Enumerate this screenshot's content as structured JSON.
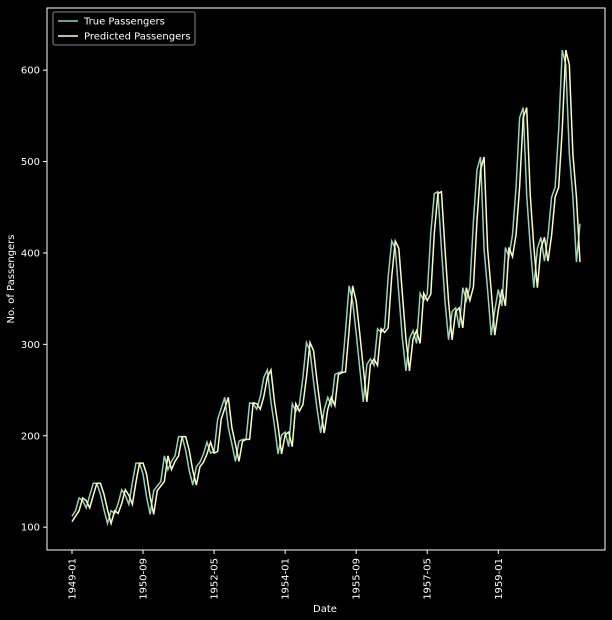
{
  "chart_data": {
    "type": "line",
    "xlabel": "Date",
    "ylabel": "No. of Passengers",
    "x": [
      "1949-01",
      "1949-02",
      "1949-03",
      "1949-04",
      "1949-05",
      "1949-06",
      "1949-07",
      "1949-08",
      "1949-09",
      "1949-10",
      "1949-11",
      "1949-12",
      "1950-01",
      "1950-02",
      "1950-03",
      "1950-04",
      "1950-05",
      "1950-06",
      "1950-07",
      "1950-08",
      "1950-09",
      "1950-10",
      "1950-11",
      "1950-12",
      "1951-01",
      "1951-02",
      "1951-03",
      "1951-04",
      "1951-05",
      "1951-06",
      "1951-07",
      "1951-08",
      "1951-09",
      "1951-10",
      "1951-11",
      "1951-12",
      "1952-01",
      "1952-02",
      "1952-03",
      "1952-04",
      "1952-05",
      "1952-06",
      "1952-07",
      "1952-08",
      "1952-09",
      "1952-10",
      "1952-11",
      "1952-12",
      "1953-01",
      "1953-02",
      "1953-03",
      "1953-04",
      "1953-05",
      "1953-06",
      "1953-07",
      "1953-08",
      "1953-09",
      "1953-10",
      "1953-11",
      "1953-12",
      "1954-01",
      "1954-02",
      "1954-03",
      "1954-04",
      "1954-05",
      "1954-06",
      "1954-07",
      "1954-08",
      "1954-09",
      "1954-10",
      "1954-11",
      "1954-12",
      "1955-01",
      "1955-02",
      "1955-03",
      "1955-04",
      "1955-05",
      "1955-06",
      "1955-07",
      "1955-08",
      "1955-09",
      "1955-10",
      "1955-11",
      "1955-12",
      "1956-01",
      "1956-02",
      "1956-03",
      "1956-04",
      "1956-05",
      "1956-06",
      "1956-07",
      "1956-08",
      "1956-09",
      "1956-10",
      "1956-11",
      "1956-12",
      "1957-01",
      "1957-02",
      "1957-03",
      "1957-04",
      "1957-05",
      "1957-06",
      "1957-07",
      "1957-08",
      "1957-09",
      "1957-10",
      "1957-11",
      "1957-12",
      "1958-01",
      "1958-02",
      "1958-03",
      "1958-04",
      "1958-05",
      "1958-06",
      "1958-07",
      "1958-08",
      "1958-09",
      "1958-10",
      "1958-11",
      "1958-12",
      "1959-01",
      "1959-02",
      "1959-03",
      "1959-04",
      "1959-05",
      "1959-06",
      "1959-07",
      "1959-08",
      "1959-09",
      "1959-10",
      "1959-11",
      "1959-12",
      "1960-01",
      "1960-02",
      "1960-03",
      "1960-04",
      "1960-05",
      "1960-06",
      "1960-07",
      "1960-08",
      "1960-09",
      "1960-10",
      "1960-11",
      "1960-12"
    ],
    "series": [
      {
        "name": "True Passengers",
        "color": "#8dd3c7",
        "values": [
          112,
          118,
          132,
          129,
          121,
          135,
          148,
          148,
          136,
          119,
          104,
          118,
          115,
          126,
          141,
          135,
          125,
          149,
          170,
          170,
          158,
          133,
          114,
          140,
          145,
          150,
          178,
          163,
          172,
          178,
          199,
          199,
          184,
          162,
          146,
          166,
          171,
          180,
          193,
          181,
          183,
          218,
          230,
          242,
          209,
          191,
          172,
          194,
          196,
          196,
          236,
          235,
          229,
          243,
          264,
          272,
          237,
          211,
          180,
          201,
          204,
          188,
          235,
          227,
          234,
          264,
          302,
          293,
          259,
          229,
          203,
          229,
          242,
          233,
          267,
          269,
          270,
          315,
          364,
          347,
          312,
          274,
          237,
          278,
          284,
          277,
          317,
          313,
          318,
          374,
          413,
          405,
          355,
          306,
          271,
          306,
          315,
          301,
          356,
          348,
          355,
          422,
          465,
          467,
          404,
          347,
          305,
          336,
          340,
          318,
          362,
          348,
          363,
          435,
          491,
          505,
          404,
          359,
          310,
          337,
          360,
          342,
          406,
          396,
          420,
          472,
          548,
          559,
          463,
          407,
          362,
          405,
          417,
          391,
          419,
          461,
          472,
          535,
          622,
          606,
          508,
          461,
          390,
          432
        ]
      },
      {
        "name": "Predicted Passengers",
        "color": "#feffb3",
        "values": [
          106,
          112,
          118,
          132,
          129,
          121,
          135,
          148,
          148,
          136,
          119,
          104,
          118,
          115,
          126,
          141,
          135,
          125,
          149,
          170,
          170,
          158,
          133,
          114,
          140,
          145,
          150,
          178,
          163,
          172,
          178,
          199,
          199,
          184,
          162,
          146,
          166,
          171,
          180,
          193,
          181,
          183,
          218,
          230,
          242,
          209,
          191,
          172,
          194,
          196,
          196,
          236,
          235,
          229,
          243,
          264,
          272,
          237,
          211,
          180,
          201,
          204,
          188,
          235,
          227,
          234,
          264,
          302,
          293,
          259,
          229,
          203,
          229,
          242,
          233,
          267,
          269,
          270,
          315,
          364,
          347,
          312,
          274,
          237,
          278,
          284,
          277,
          317,
          313,
          318,
          374,
          413,
          405,
          355,
          306,
          271,
          306,
          315,
          301,
          356,
          348,
          355,
          422,
          465,
          467,
          404,
          347,
          305,
          336,
          340,
          318,
          362,
          348,
          363,
          435,
          491,
          505,
          404,
          359,
          310,
          337,
          360,
          342,
          406,
          396,
          420,
          472,
          548,
          559,
          463,
          407,
          362,
          405,
          417,
          391,
          419,
          461,
          472,
          535,
          622,
          606,
          508,
          461,
          390
        ]
      }
    ],
    "xticks": [
      "1949-01",
      "1950-09",
      "1952-05",
      "1954-01",
      "1955-09",
      "1957-05",
      "1959-01"
    ],
    "ylim": [
      75,
      668
    ],
    "yticks": [
      100,
      200,
      300,
      400,
      500,
      600
    ],
    "legend": "upper left",
    "grid": false
  }
}
